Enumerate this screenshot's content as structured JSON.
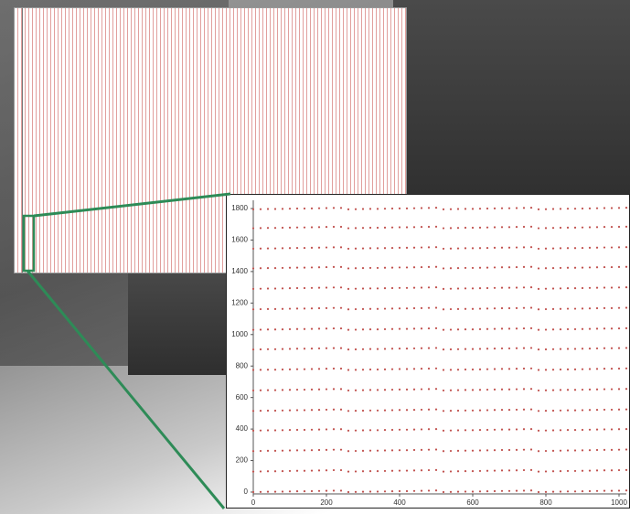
{
  "chart_data": {
    "type": "scatter",
    "color": "#c0504d",
    "x": [
      0,
      20,
      40,
      60,
      80,
      100,
      120,
      140,
      160,
      180,
      200,
      220,
      240,
      260,
      280,
      300,
      320,
      340,
      360,
      380,
      400,
      420,
      440,
      460,
      480,
      500,
      520,
      540,
      560,
      580,
      600,
      620,
      640,
      660,
      680,
      700,
      720,
      740,
      760,
      780,
      800,
      820,
      840,
      860,
      880,
      900,
      920,
      940,
      960,
      980,
      1000,
      1020
    ],
    "series": [
      {
        "values": [
          0,
          1,
          2,
          2,
          3,
          4,
          5,
          5,
          6,
          7,
          8,
          9,
          9,
          0,
          1,
          2,
          3,
          3,
          4,
          5,
          6,
          6,
          7,
          8,
          9,
          10,
          0,
          1,
          2,
          3,
          3,
          4,
          5,
          6,
          7,
          7,
          8,
          9,
          10,
          0,
          1,
          2,
          3,
          4,
          4,
          5,
          6,
          7,
          8,
          8,
          9,
          10
        ]
      },
      {
        "values": [
          130,
          131,
          132,
          132,
          133,
          134,
          135,
          135,
          136,
          137,
          138,
          139,
          139,
          130,
          131,
          132,
          133,
          133,
          134,
          135,
          136,
          136,
          137,
          138,
          139,
          140,
          130,
          131,
          132,
          133,
          133,
          134,
          135,
          136,
          137,
          137,
          138,
          139,
          140,
          130,
          131,
          132,
          133,
          134,
          134,
          135,
          136,
          137,
          138,
          138,
          139,
          140
        ]
      },
      {
        "values": [
          260,
          261,
          262,
          262,
          263,
          264,
          265,
          265,
          266,
          267,
          268,
          269,
          269,
          260,
          261,
          262,
          263,
          263,
          264,
          265,
          266,
          266,
          267,
          268,
          269,
          270,
          260,
          261,
          262,
          263,
          263,
          264,
          265,
          266,
          267,
          267,
          268,
          269,
          270,
          260,
          261,
          262,
          263,
          264,
          264,
          265,
          266,
          267,
          268,
          268,
          269,
          270
        ]
      },
      {
        "values": [
          390,
          391,
          392,
          392,
          393,
          394,
          395,
          395,
          396,
          397,
          398,
          399,
          399,
          390,
          391,
          392,
          393,
          393,
          394,
          395,
          396,
          396,
          397,
          398,
          399,
          400,
          390,
          391,
          392,
          393,
          393,
          394,
          395,
          396,
          397,
          397,
          398,
          399,
          400,
          390,
          391,
          392,
          393,
          394,
          394,
          395,
          396,
          397,
          398,
          398,
          399,
          400
        ]
      },
      {
        "values": [
          515,
          516,
          517,
          517,
          518,
          519,
          520,
          520,
          521,
          522,
          523,
          524,
          524,
          515,
          516,
          517,
          518,
          518,
          519,
          520,
          521,
          521,
          522,
          523,
          524,
          525,
          515,
          516,
          517,
          518,
          518,
          519,
          520,
          521,
          522,
          522,
          523,
          524,
          525,
          515,
          516,
          517,
          518,
          519,
          519,
          520,
          521,
          522,
          523,
          523,
          524,
          525
        ]
      },
      {
        "values": [
          645,
          646,
          647,
          647,
          648,
          649,
          650,
          650,
          651,
          652,
          653,
          654,
          654,
          645,
          646,
          647,
          648,
          648,
          649,
          650,
          651,
          651,
          652,
          653,
          654,
          655,
          645,
          646,
          647,
          648,
          648,
          649,
          650,
          651,
          652,
          652,
          653,
          654,
          655,
          645,
          646,
          647,
          648,
          649,
          649,
          650,
          651,
          652,
          653,
          653,
          654,
          655
        ]
      },
      {
        "values": [
          775,
          776,
          777,
          777,
          778,
          779,
          780,
          780,
          781,
          782,
          783,
          784,
          784,
          775,
          776,
          777,
          778,
          778,
          779,
          780,
          781,
          781,
          782,
          783,
          784,
          785,
          775,
          776,
          777,
          778,
          778,
          779,
          780,
          781,
          782,
          782,
          783,
          784,
          785,
          775,
          776,
          777,
          778,
          779,
          779,
          780,
          781,
          782,
          783,
          783,
          784,
          785
        ]
      },
      {
        "values": [
          905,
          906,
          907,
          907,
          908,
          909,
          910,
          910,
          911,
          912,
          913,
          914,
          914,
          905,
          906,
          907,
          908,
          908,
          909,
          910,
          911,
          911,
          912,
          913,
          914,
          915,
          905,
          906,
          907,
          908,
          908,
          909,
          910,
          911,
          912,
          912,
          913,
          914,
          915,
          905,
          906,
          907,
          908,
          909,
          909,
          910,
          911,
          912,
          913,
          913,
          914,
          915
        ]
      },
      {
        "values": [
          1030,
          1031,
          1032,
          1032,
          1033,
          1034,
          1035,
          1035,
          1036,
          1037,
          1038,
          1039,
          1039,
          1030,
          1031,
          1032,
          1033,
          1033,
          1034,
          1035,
          1036,
          1036,
          1037,
          1038,
          1039,
          1040,
          1030,
          1031,
          1032,
          1033,
          1033,
          1034,
          1035,
          1036,
          1037,
          1037,
          1038,
          1039,
          1040,
          1030,
          1031,
          1032,
          1033,
          1034,
          1034,
          1035,
          1036,
          1037,
          1038,
          1038,
          1039,
          1040
        ]
      },
      {
        "values": [
          1160,
          1161,
          1162,
          1162,
          1163,
          1164,
          1165,
          1165,
          1166,
          1167,
          1168,
          1169,
          1169,
          1160,
          1161,
          1162,
          1163,
          1163,
          1164,
          1165,
          1166,
          1166,
          1167,
          1168,
          1169,
          1170,
          1160,
          1161,
          1162,
          1163,
          1163,
          1164,
          1165,
          1166,
          1167,
          1167,
          1168,
          1169,
          1170,
          1160,
          1161,
          1162,
          1163,
          1164,
          1164,
          1165,
          1166,
          1167,
          1168,
          1168,
          1169,
          1170
        ]
      },
      {
        "values": [
          1290,
          1291,
          1292,
          1292,
          1293,
          1294,
          1295,
          1295,
          1296,
          1297,
          1298,
          1299,
          1299,
          1290,
          1291,
          1292,
          1293,
          1293,
          1294,
          1295,
          1296,
          1296,
          1297,
          1298,
          1299,
          1300,
          1290,
          1291,
          1292,
          1293,
          1293,
          1294,
          1295,
          1296,
          1297,
          1297,
          1298,
          1299,
          1300,
          1290,
          1291,
          1292,
          1293,
          1294,
          1294,
          1295,
          1296,
          1297,
          1298,
          1298,
          1299,
          1300
        ]
      },
      {
        "values": [
          1420,
          1421,
          1422,
          1422,
          1423,
          1424,
          1425,
          1425,
          1426,
          1427,
          1428,
          1429,
          1429,
          1420,
          1421,
          1422,
          1423,
          1423,
          1424,
          1425,
          1426,
          1426,
          1427,
          1428,
          1429,
          1430,
          1420,
          1421,
          1422,
          1423,
          1423,
          1424,
          1425,
          1426,
          1427,
          1427,
          1428,
          1429,
          1430,
          1420,
          1421,
          1422,
          1423,
          1424,
          1424,
          1425,
          1426,
          1427,
          1428,
          1428,
          1429,
          1430
        ]
      },
      {
        "values": [
          1545,
          1546,
          1547,
          1547,
          1548,
          1549,
          1550,
          1550,
          1551,
          1552,
          1553,
          1554,
          1554,
          1545,
          1546,
          1547,
          1548,
          1548,
          1549,
          1550,
          1551,
          1551,
          1552,
          1553,
          1554,
          1555,
          1545,
          1546,
          1547,
          1548,
          1548,
          1549,
          1550,
          1551,
          1552,
          1552,
          1553,
          1554,
          1555,
          1545,
          1546,
          1547,
          1548,
          1549,
          1549,
          1550,
          1551,
          1552,
          1553,
          1553,
          1554,
          1555
        ]
      },
      {
        "values": [
          1675,
          1676,
          1677,
          1677,
          1678,
          1679,
          1680,
          1680,
          1681,
          1682,
          1683,
          1684,
          1684,
          1675,
          1676,
          1677,
          1678,
          1678,
          1679,
          1680,
          1681,
          1681,
          1682,
          1683,
          1684,
          1685,
          1675,
          1676,
          1677,
          1678,
          1678,
          1679,
          1680,
          1681,
          1682,
          1682,
          1683,
          1684,
          1685,
          1675,
          1676,
          1677,
          1678,
          1679,
          1679,
          1680,
          1681,
          1682,
          1683,
          1683,
          1684,
          1685
        ]
      },
      {
        "values": [
          1795,
          1796,
          1797,
          1797,
          1798,
          1799,
          1800,
          1800,
          1801,
          1802,
          1803,
          1804,
          1804,
          1795,
          1796,
          1797,
          1798,
          1798,
          1799,
          1800,
          1801,
          1801,
          1802,
          1803,
          1804,
          1805,
          1795,
          1796,
          1797,
          1798,
          1798,
          1799,
          1800,
          1801,
          1802,
          1802,
          1803,
          1804,
          1805,
          1795,
          1796,
          1797,
          1798,
          1799,
          1799,
          1800,
          1801,
          1802,
          1803,
          1803,
          1804,
          1805
        ]
      }
    ],
    "xlim": [
      0,
      1020
    ],
    "ylim": [
      0,
      1850
    ],
    "xticks": [
      0,
      200,
      400,
      600,
      800,
      1000
    ],
    "yticks": [
      0,
      200,
      400,
      600,
      800,
      1000,
      1200,
      1400,
      1600,
      1800
    ]
  }
}
